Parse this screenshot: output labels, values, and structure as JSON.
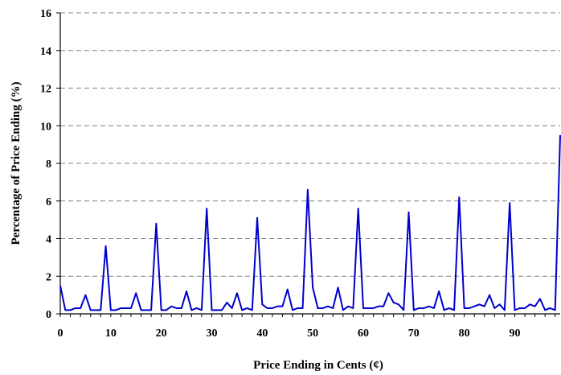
{
  "chart_data": {
    "type": "line",
    "title": "",
    "xlabel": "Price Ending in Cents (¢)",
    "ylabel": "Percentage of Price Ending (%)",
    "xlim": [
      0,
      99
    ],
    "ylim": [
      0,
      16
    ],
    "xticks": [
      0,
      10,
      20,
      30,
      40,
      50,
      60,
      70,
      80,
      90
    ],
    "xtick_labels": [
      "0",
      "10",
      "20",
      "30",
      "40",
      "50",
      "60",
      "70",
      "80",
      "90"
    ],
    "yticks": [
      0,
      2,
      4,
      6,
      8,
      10,
      12,
      14,
      16
    ],
    "ytick_labels": [
      "0",
      "2",
      "4",
      "6",
      "8",
      "10",
      "12",
      "14",
      "16"
    ],
    "grid": "horizontal-dashed",
    "legend": "none",
    "line_color": "#0000cc",
    "series": [
      {
        "x": [
          0,
          1,
          2,
          3,
          4,
          5,
          6,
          7,
          8,
          9,
          10,
          11,
          12,
          13,
          14,
          15,
          16,
          17,
          18,
          19,
          20,
          21,
          22,
          23,
          24,
          25,
          26,
          27,
          28,
          29,
          30,
          31,
          32,
          33,
          34,
          35,
          36,
          37,
          38,
          39,
          40,
          41,
          42,
          43,
          44,
          45,
          46,
          47,
          48,
          49,
          50,
          51,
          52,
          53,
          54,
          55,
          56,
          57,
          58,
          59,
          60,
          61,
          62,
          63,
          64,
          65,
          66,
          67,
          68,
          69,
          70,
          71,
          72,
          73,
          74,
          75,
          76,
          77,
          78,
          79,
          80,
          81,
          82,
          83,
          84,
          85,
          86,
          87,
          88,
          89,
          90,
          91,
          92,
          93,
          94,
          95,
          96,
          97,
          98,
          99
        ],
        "values": [
          1.5,
          0.2,
          0.2,
          0.3,
          0.3,
          1.0,
          0.2,
          0.2,
          0.2,
          3.6,
          0.2,
          0.2,
          0.3,
          0.3,
          0.3,
          1.1,
          0.2,
          0.2,
          0.2,
          4.8,
          0.2,
          0.2,
          0.4,
          0.3,
          0.3,
          1.2,
          0.2,
          0.3,
          0.2,
          5.6,
          0.2,
          0.2,
          0.2,
          0.6,
          0.3,
          1.1,
          0.2,
          0.3,
          0.2,
          5.1,
          0.5,
          0.3,
          0.3,
          0.4,
          0.4,
          1.3,
          0.2,
          0.3,
          0.3,
          6.6,
          1.4,
          0.3,
          0.3,
          0.4,
          0.3,
          1.4,
          0.2,
          0.4,
          0.3,
          5.6,
          0.3,
          0.3,
          0.3,
          0.4,
          0.4,
          1.1,
          0.6,
          0.5,
          0.2,
          5.4,
          0.2,
          0.3,
          0.3,
          0.4,
          0.3,
          1.2,
          0.2,
          0.3,
          0.2,
          6.2,
          0.3,
          0.3,
          0.4,
          0.5,
          0.4,
          1.0,
          0.3,
          0.5,
          0.2,
          5.9,
          0.2,
          0.3,
          0.3,
          0.5,
          0.4,
          0.8,
          0.2,
          0.3,
          0.2,
          9.5
        ]
      }
    ]
  }
}
